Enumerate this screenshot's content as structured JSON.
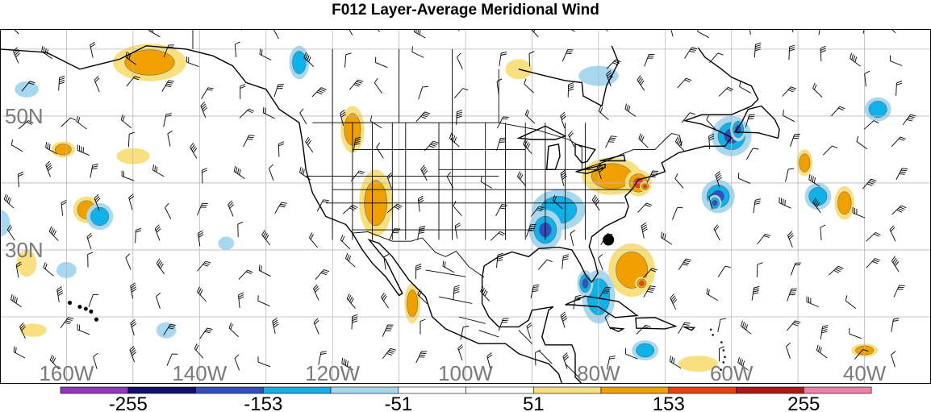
{
  "title": "F012 Layer-Average Meridional Wind",
  "map": {
    "lat_labels": [
      {
        "text": "50N",
        "lat": 50
      },
      {
        "text": "30N",
        "lat": 30
      }
    ],
    "lon_labels": [
      {
        "text": "160W",
        "lon": -160
      },
      {
        "text": "140W",
        "lon": -140
      },
      {
        "text": "120W",
        "lon": -120
      },
      {
        "text": "100W",
        "lon": -100
      },
      {
        "text": "80W",
        "lon": -80
      },
      {
        "text": "60W",
        "lon": -60
      },
      {
        "text": "40W",
        "lon": -40
      }
    ],
    "extent": {
      "lon_min": -170,
      "lon_max": -30,
      "lat_min": 10,
      "lat_max": 63
    },
    "marker": {
      "lon": -78.5,
      "lat": 31.5,
      "color": "#000000"
    },
    "positive_regions": [
      {
        "lon": -147.5,
        "lat": 58,
        "rx": 5.5,
        "ry": 2.8,
        "level": 2
      },
      {
        "lon": -117,
        "lat": 48,
        "rx": 1.8,
        "ry": 3.5,
        "level": 2
      },
      {
        "lon": -113.5,
        "lat": 37,
        "rx": 2.5,
        "ry": 5,
        "level": 2
      },
      {
        "lon": -108,
        "lat": 22,
        "rx": 1.2,
        "ry": 3,
        "level": 2
      },
      {
        "lon": -78,
        "lat": 41,
        "rx": 4.5,
        "ry": 2.8,
        "level": 2
      },
      {
        "lon": -74,
        "lat": 40,
        "rx": 2,
        "ry": 2,
        "level": 3
      },
      {
        "lon": -73,
        "lat": 39.5,
        "rx": 0.8,
        "ry": 0.8,
        "level": 4
      },
      {
        "lon": -75,
        "lat": 27,
        "rx": 3.5,
        "ry": 4,
        "level": 2
      },
      {
        "lon": -73.5,
        "lat": 25,
        "rx": 1,
        "ry": 1,
        "level": 3
      },
      {
        "lon": -157,
        "lat": 36,
        "rx": 2,
        "ry": 2,
        "level": 2
      },
      {
        "lon": -160.5,
        "lat": 45,
        "rx": 1.8,
        "ry": 1.2,
        "level": 2
      },
      {
        "lon": -43,
        "lat": 37,
        "rx": 1.5,
        "ry": 2.5,
        "level": 2
      },
      {
        "lon": -49,
        "lat": 43,
        "rx": 1.2,
        "ry": 2,
        "level": 2
      },
      {
        "lon": -166,
        "lat": 28,
        "rx": 1.5,
        "ry": 2,
        "level": 1
      },
      {
        "lon": -150,
        "lat": 44,
        "rx": 2.5,
        "ry": 1.2,
        "level": 1
      },
      {
        "lon": -92,
        "lat": 57,
        "rx": 2,
        "ry": 1.5,
        "level": 1
      },
      {
        "lon": -40,
        "lat": 15,
        "rx": 2,
        "ry": 1,
        "level": 2
      },
      {
        "lon": -65,
        "lat": 13,
        "rx": 3,
        "ry": 1.2,
        "level": 1
      },
      {
        "lon": -165,
        "lat": 18,
        "rx": 2,
        "ry": 1,
        "level": 1
      }
    ],
    "negative_regions": [
      {
        "lon": -125,
        "lat": 58,
        "rx": 1.5,
        "ry": 2.5,
        "level": 2
      },
      {
        "lon": -86,
        "lat": 36,
        "rx": 4,
        "ry": 3,
        "level": 2
      },
      {
        "lon": -88,
        "lat": 33,
        "rx": 2.5,
        "ry": 3,
        "level": 3
      },
      {
        "lon": -80,
        "lat": 23,
        "rx": 2.5,
        "ry": 4,
        "level": 2
      },
      {
        "lon": -82,
        "lat": 25,
        "rx": 1.2,
        "ry": 2,
        "level": 3
      },
      {
        "lon": -60,
        "lat": 47,
        "rx": 3,
        "ry": 3,
        "level": 3
      },
      {
        "lon": -59,
        "lat": 48,
        "rx": 1.2,
        "ry": 1.8,
        "level": 4
      },
      {
        "lon": -62,
        "lat": 38,
        "rx": 2.5,
        "ry": 2.5,
        "level": 3
      },
      {
        "lon": -62.5,
        "lat": 37,
        "rx": 1,
        "ry": 1.2,
        "level": 4
      },
      {
        "lon": -47,
        "lat": 38,
        "rx": 2,
        "ry": 2,
        "level": 2
      },
      {
        "lon": -38,
        "lat": 51,
        "rx": 2,
        "ry": 1.8,
        "level": 2
      },
      {
        "lon": -155,
        "lat": 35,
        "rx": 2,
        "ry": 2,
        "level": 2
      },
      {
        "lon": -160,
        "lat": 27,
        "rx": 1.5,
        "ry": 1.2,
        "level": 1
      },
      {
        "lon": -145,
        "lat": 18,
        "rx": 1.5,
        "ry": 1.2,
        "level": 1
      },
      {
        "lon": -73,
        "lat": 15,
        "rx": 2,
        "ry": 1.5,
        "level": 2
      },
      {
        "lon": -80,
        "lat": 56,
        "rx": 3,
        "ry": 1.5,
        "level": 1
      },
      {
        "lon": -166,
        "lat": 54,
        "rx": 1.8,
        "ry": 1.2,
        "level": 1
      },
      {
        "lon": -170,
        "lat": 34,
        "rx": 1.5,
        "ry": 2,
        "level": 1
      },
      {
        "lon": -136,
        "lat": 31,
        "rx": 1.2,
        "ry": 1,
        "level": 1
      }
    ]
  },
  "colorbar": {
    "colors": [
      "#9038c0",
      "#10106a",
      "#3050c0",
      "#10b0e8",
      "#a8d8f0",
      "#ffffff",
      "#ffffff",
      "#f8e080",
      "#f0a000",
      "#e84010",
      "#b01818",
      "#f080a8"
    ],
    "labels": [
      {
        "text": "-255",
        "value": -255
      },
      {
        "text": "-153",
        "value": -153
      },
      {
        "text": "-51",
        "value": -51
      },
      {
        "text": "51",
        "value": 51
      },
      {
        "text": "153",
        "value": 153
      },
      {
        "text": "255",
        "value": 255
      }
    ],
    "min": -306,
    "max": 306
  }
}
